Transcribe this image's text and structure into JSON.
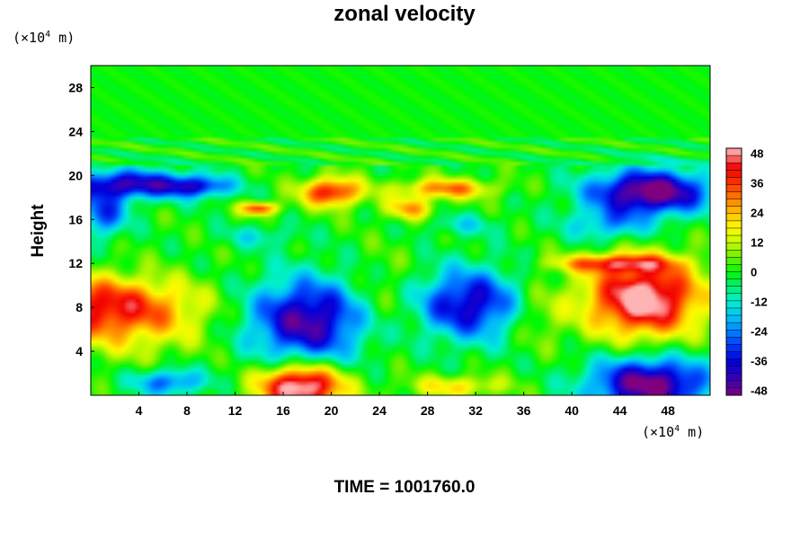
{
  "chart_data": {
    "type": "heatmap",
    "title": "zonal velocity",
    "ylabel": "Height",
    "xlabel": "",
    "footer": "TIME = 1001760.0",
    "units": {
      "base": "(×10",
      "exp": "4",
      "unit": " m)"
    },
    "x_range": [
      0,
      51.5
    ],
    "y_range": [
      0,
      30
    ],
    "x_ticks": [
      4,
      8,
      12,
      16,
      20,
      24,
      28,
      32,
      36,
      40,
      44,
      48
    ],
    "y_ticks": [
      4,
      8,
      12,
      16,
      20,
      24,
      28
    ],
    "colorbar": {
      "range": [
        -50,
        50
      ],
      "ticks": [
        48,
        36,
        24,
        12,
        0,
        -12,
        -24,
        -36,
        -48
      ]
    },
    "features": [
      {
        "x": 0,
        "y": 8.5,
        "value": 30,
        "rx": 8,
        "ry": 2.5
      },
      {
        "x": 2.5,
        "y": 6.5,
        "value": 20,
        "rx": 7,
        "ry": 3
      },
      {
        "x": 18,
        "y": 6.8,
        "value": -46,
        "rx": 5,
        "ry": 3.8
      },
      {
        "x": 31.5,
        "y": 8.3,
        "value": -40,
        "rx": 4.5,
        "ry": 3.2
      },
      {
        "x": 24.5,
        "y": 8.5,
        "value": 10,
        "rx": 3,
        "ry": 4
      },
      {
        "x": 37,
        "y": 7.5,
        "value": 12,
        "rx": 2.5,
        "ry": 3
      },
      {
        "x": 46,
        "y": 8.8,
        "value": 55,
        "rx": 4.8,
        "ry": 3.4
      },
      {
        "x": 43.5,
        "y": 12,
        "value": 30,
        "rx": 5,
        "ry": 0.8
      },
      {
        "x": 17.5,
        "y": 0.8,
        "value": 58,
        "rx": 3.5,
        "ry": 2
      },
      {
        "x": 46.5,
        "y": 1,
        "value": -52,
        "rx": 5,
        "ry": 2.4
      },
      {
        "x": 6.5,
        "y": 1.2,
        "value": -28,
        "rx": 3,
        "ry": 1.2
      },
      {
        "x": 30.5,
        "y": 0.8,
        "value": 20,
        "rx": 4,
        "ry": 1
      },
      {
        "x": 3,
        "y": 19.2,
        "value": -42,
        "rx": 5,
        "ry": 1.3
      },
      {
        "x": 9,
        "y": 19,
        "value": -30,
        "rx": 3,
        "ry": 1
      },
      {
        "x": 1,
        "y": 16.5,
        "value": -30,
        "rx": 2,
        "ry": 2
      },
      {
        "x": 46.5,
        "y": 18.5,
        "value": -55,
        "rx": 5,
        "ry": 2
      },
      {
        "x": 43,
        "y": 15.5,
        "value": -20,
        "rx": 3.5,
        "ry": 1.5
      },
      {
        "x": 20,
        "y": 18.5,
        "value": 42,
        "rx": 2.5,
        "ry": 1.3
      },
      {
        "x": 29.5,
        "y": 18.8,
        "value": 30,
        "rx": 4,
        "ry": 0.9
      },
      {
        "x": 14,
        "y": 17,
        "value": 38,
        "rx": 1.5,
        "ry": 0.6
      },
      {
        "x": 26.5,
        "y": 17,
        "value": 25,
        "rx": 2,
        "ry": 1
      },
      {
        "x": 14,
        "y": 14.5,
        "value": -12,
        "rx": 3,
        "ry": 1
      },
      {
        "x": 31,
        "y": 15.5,
        "value": -12,
        "rx": 3,
        "ry": 1
      }
    ]
  }
}
